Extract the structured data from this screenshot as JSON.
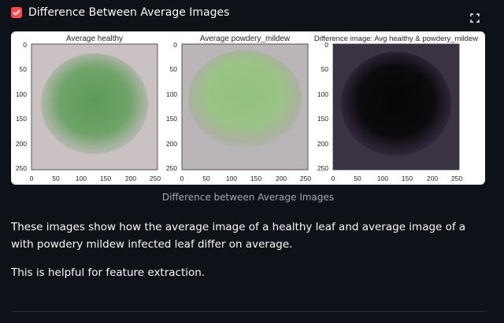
{
  "expander": {
    "label": "Difference Between Average Images",
    "checked": true,
    "accent_color": "#ff4b4b"
  },
  "fullscreen": {
    "icon": "fullscreen-icon"
  },
  "figure": {
    "panels": [
      {
        "title": "Average healthy"
      },
      {
        "title": "Average powdery_mildew"
      },
      {
        "title": "Difference image: Avg healthy & powdery_mildew"
      }
    ],
    "y_ticks": [
      "0",
      "50",
      "100",
      "150",
      "200",
      "250"
    ],
    "x_ticks": [
      "0",
      "50",
      "100",
      "150",
      "200",
      "250"
    ]
  },
  "caption": "Difference between Average Images",
  "paragraphs": [
    "These images show how the average image of a healthy leaf and average image of a with powdery mildew infected leaf differ on average.",
    "This is helpful for feature extraction."
  ]
}
